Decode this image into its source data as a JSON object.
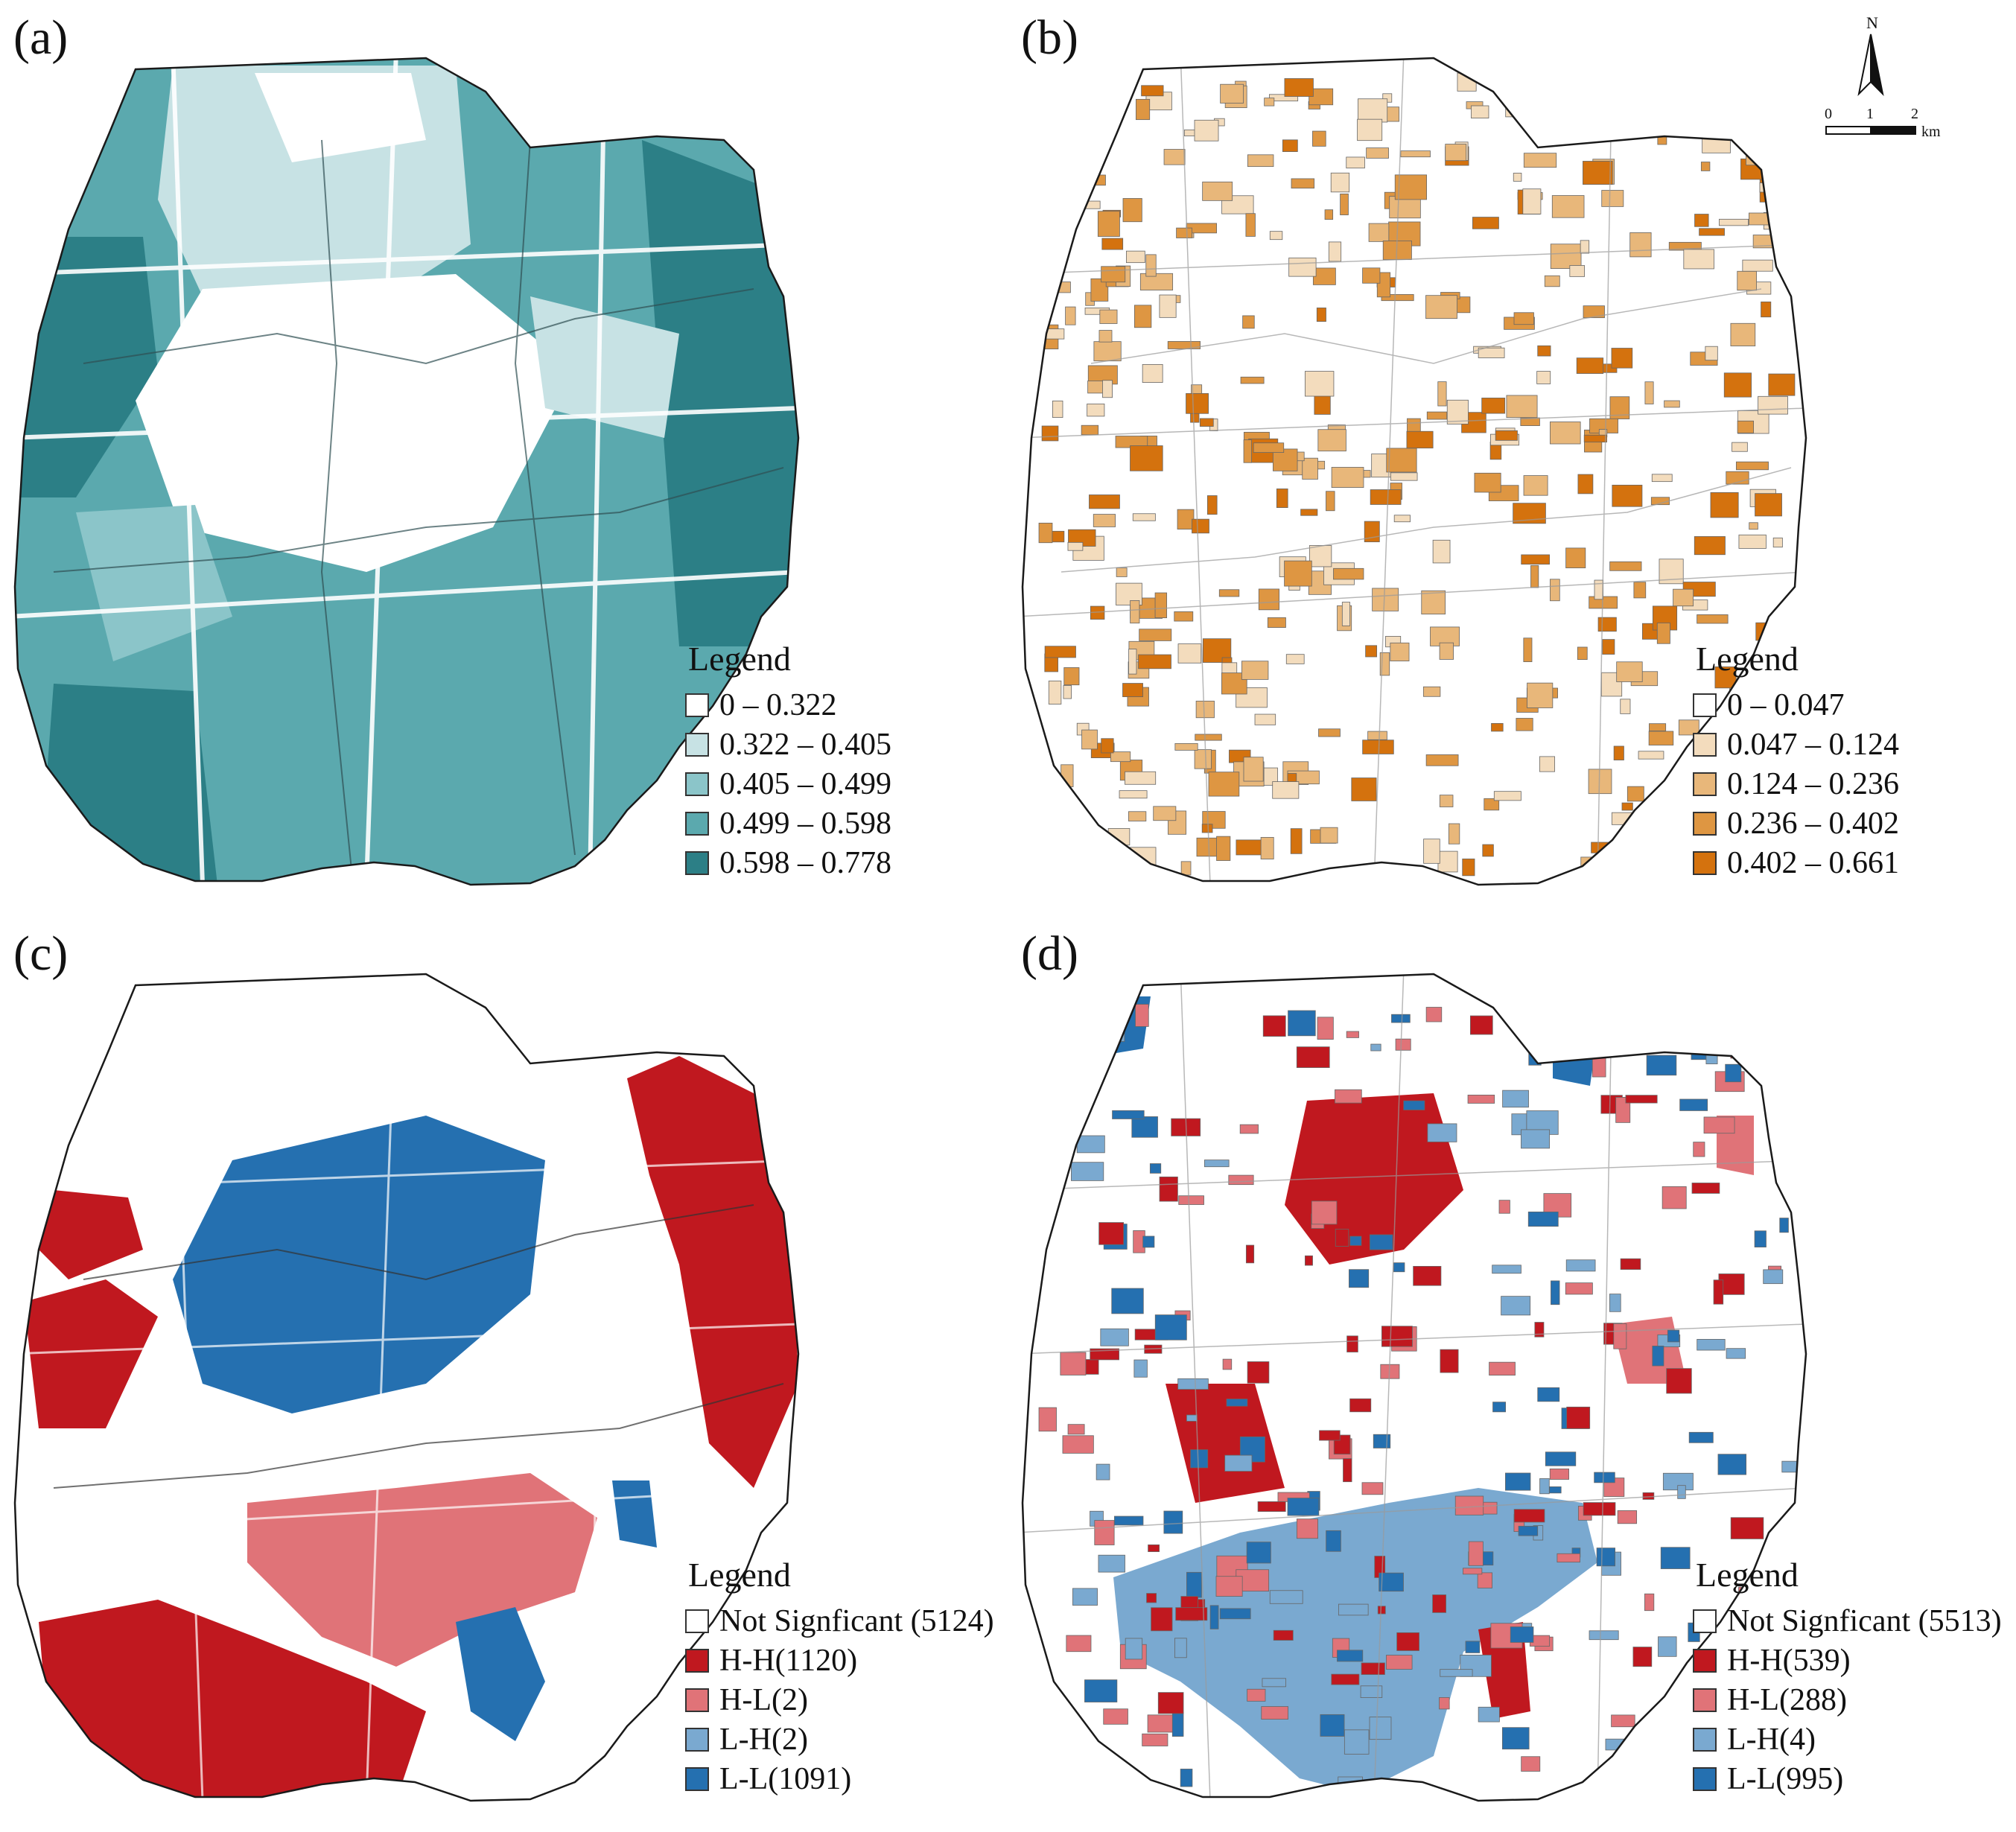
{
  "panels": [
    {
      "label": "(a)",
      "legend_title": "Legend",
      "fill_palette": [
        "#ffffff",
        "#c7e2e4",
        "#8bc5c9",
        "#5ba9ae",
        "#2c7f86"
      ],
      "legend_items": [
        {
          "label": "0 – 0.322",
          "color": "#ffffff"
        },
        {
          "label": "0.322 – 0.405",
          "color": "#c7e2e4"
        },
        {
          "label": "0.405 – 0.499",
          "color": "#8bc5c9"
        },
        {
          "label": "0.499 – 0.598",
          "color": "#5ba9ae"
        },
        {
          "label": "0.598 – 0.778",
          "color": "#2c7f86"
        }
      ]
    },
    {
      "label": "(b)",
      "legend_title": "Legend",
      "fill_palette": [
        "#ffffff",
        "#f3dcbd",
        "#e8b77a",
        "#de9642",
        "#d4720e"
      ],
      "legend_items": [
        {
          "label": "0 – 0.047",
          "color": "#ffffff"
        },
        {
          "label": "0.047 – 0.124",
          "color": "#f3dcbd"
        },
        {
          "label": "0.124 – 0.236",
          "color": "#e8b77a"
        },
        {
          "label": "0.236 – 0.402",
          "color": "#de9642"
        },
        {
          "label": "0.402 – 0.661",
          "color": "#d4720e"
        }
      ]
    },
    {
      "label": "(c)",
      "legend_title": "Legend",
      "fill_palette": [
        "#ffffff",
        "#c0181f",
        "#e07378",
        "#7aa9d0",
        "#2570b0"
      ],
      "legend_items": [
        {
          "label": "Not Signficant (5124)",
          "color": "#ffffff"
        },
        {
          "label": "H-H(1120)",
          "color": "#c0181f"
        },
        {
          "label": "H-L(2)",
          "color": "#e07378"
        },
        {
          "label": "L-H(2)",
          "color": "#7aa9d0"
        },
        {
          "label": "L-L(1091)",
          "color": "#2570b0"
        }
      ]
    },
    {
      "label": "(d)",
      "legend_title": "Legend",
      "fill_palette": [
        "#ffffff",
        "#c0181f",
        "#e07378",
        "#7aa9d0",
        "#2570b0"
      ],
      "legend_items": [
        {
          "label": "Not Signficant (5513)",
          "color": "#ffffff"
        },
        {
          "label": "H-H(539)",
          "color": "#c0181f"
        },
        {
          "label": "H-L(288)",
          "color": "#e07378"
        },
        {
          "label": "L-H(4)",
          "color": "#7aa9d0"
        },
        {
          "label": "L-L(995)",
          "color": "#2570b0"
        }
      ]
    }
  ],
  "north_arrow": {
    "label": "N"
  },
  "scale_bar": {
    "ticks": [
      "0",
      "1",
      "2"
    ],
    "unit": "km"
  }
}
